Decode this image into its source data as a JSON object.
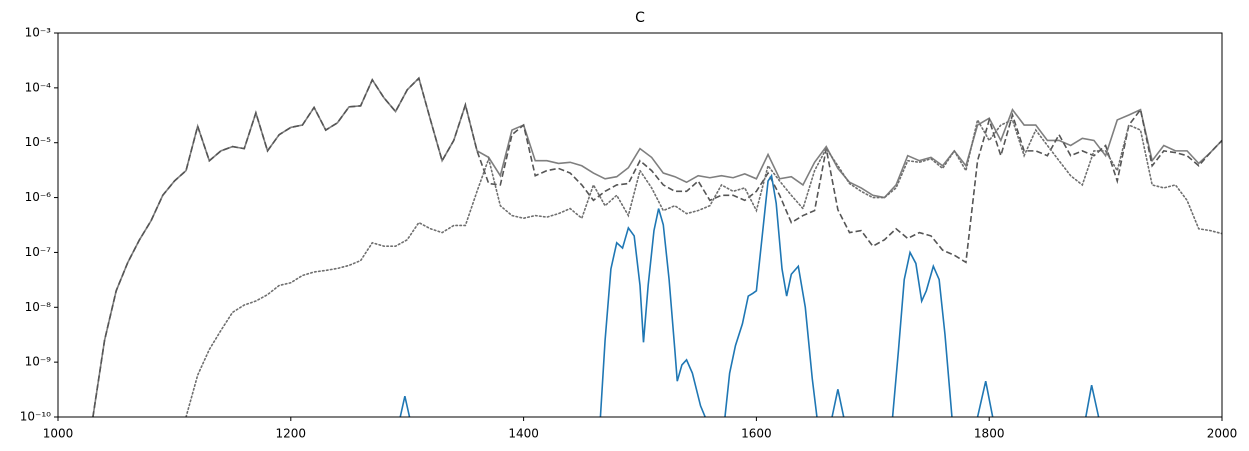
{
  "chart_data": {
    "type": "line",
    "title": "C",
    "yscale": "log",
    "xlim": [
      1000,
      2000
    ],
    "ylim": [
      1e-10,
      0.001
    ],
    "xticks": [
      1000,
      1200,
      1400,
      1600,
      1800,
      2000
    ],
    "yticks": [
      {
        "value": 1e-10,
        "label": "10⁻¹⁰"
      },
      {
        "value": 1e-09,
        "label": "10⁻⁹"
      },
      {
        "value": 1e-08,
        "label": "10⁻⁸"
      },
      {
        "value": 1e-07,
        "label": "10⁻⁷"
      },
      {
        "value": 1e-06,
        "label": "10⁻⁶"
      },
      {
        "value": 1e-05,
        "label": "10⁻⁵"
      },
      {
        "value": 0.0001,
        "label": "10⁻⁴"
      },
      {
        "value": 0.001,
        "label": "10⁻³"
      }
    ],
    "grid": false,
    "x": [
      1000,
      1010,
      1020,
      1030,
      1040,
      1050,
      1060,
      1070,
      1080,
      1090,
      1100,
      1110,
      1120,
      1130,
      1140,
      1150,
      1160,
      1170,
      1180,
      1190,
      1200,
      1210,
      1220,
      1230,
      1240,
      1250,
      1260,
      1270,
      1280,
      1290,
      1300,
      1310,
      1320,
      1330,
      1340,
      1350,
      1360,
      1370,
      1380,
      1390,
      1400,
      1410,
      1420,
      1430,
      1440,
      1450,
      1460,
      1470,
      1480,
      1490,
      1500,
      1510,
      1520,
      1530,
      1540,
      1550,
      1560,
      1570,
      1580,
      1590,
      1600,
      1610,
      1620,
      1630,
      1640,
      1650,
      1660,
      1670,
      1680,
      1690,
      1700,
      1710,
      1720,
      1730,
      1740,
      1750,
      1760,
      1770,
      1780,
      1790,
      1800,
      1810,
      1820,
      1830,
      1840,
      1850,
      1860,
      1870,
      1880,
      1890,
      1900,
      1910,
      1920,
      1930,
      1940,
      1950,
      1960,
      1970,
      1980,
      1990,
      2000
    ],
    "series": [
      {
        "color": "#7f7f7f",
        "dash": "solid",
        "values": [
          null,
          null,
          null,
          1e-10,
          2.5e-09,
          2e-08,
          6.6e-08,
          1.7e-07,
          3.8e-07,
          1.1e-06,
          2e-06,
          3.1e-06,
          2e-05,
          4.7e-06,
          7.1e-06,
          8.5e-06,
          7.8e-06,
          3.5e-05,
          7.1e-06,
          1.4e-05,
          1.9e-05,
          2.1e-05,
          4.4e-05,
          1.7e-05,
          2.3e-05,
          4.5e-05,
          4.7e-05,
          0.00014,
          6.6e-05,
          3.7e-05,
          9.2e-05,
          0.00015,
          2.6e-05,
          4.7e-06,
          1.1e-05,
          4.9e-05,
          7.1e-06,
          5.4e-06,
          2.5e-06,
          1.7e-05,
          2.1e-05,
          4.7e-06,
          4.7e-06,
          4.2e-06,
          4.4e-06,
          3.8e-06,
          2.8e-06,
          2.2e-06,
          2.4e-06,
          3.5e-06,
          7.8e-06,
          5.4e-06,
          2.8e-06,
          2.4e-06,
          1.9e-06,
          2.5e-06,
          2.3e-06,
          2.5e-06,
          2.3e-06,
          2.7e-06,
          2.2e-06,
          6.1e-06,
          2.2e-06,
          2.4e-06,
          1.7e-06,
          4.4e-06,
          8.5e-06,
          3.4e-06,
          1.9e-06,
          1.5e-06,
          1.1e-06,
          1e-06,
          1.7e-06,
          5.8e-06,
          4.7e-06,
          5.4e-06,
          3.8e-06,
          7.1e-06,
          3.8e-06,
          2.1e-05,
          2.8e-05,
          1.1e-05,
          4e-05,
          2.1e-05,
          2.1e-05,
          1.1e-05,
          1.1e-05,
          8.9e-06,
          1.2e-05,
          1.1e-05,
          5.8e-06,
          2.6e-05,
          3.2e-05,
          4e-05,
          4.7e-06,
          8.9e-06,
          7.1e-06,
          7.1e-06,
          4.2e-06,
          6.6e-06,
          1.1e-05
        ]
      },
      {
        "color": "#555555",
        "dash": "dashed",
        "values": [
          null,
          null,
          null,
          1e-10,
          2.5e-09,
          2e-08,
          6.6e-08,
          1.7e-07,
          3.8e-07,
          1.1e-06,
          2e-06,
          3.1e-06,
          2e-05,
          4.7e-06,
          7.1e-06,
          8.5e-06,
          7.8e-06,
          3.5e-05,
          7.1e-06,
          1.4e-05,
          1.9e-05,
          2.1e-05,
          4.4e-05,
          1.7e-05,
          2.3e-05,
          4.5e-05,
          4.7e-05,
          0.00014,
          6.6e-05,
          3.7e-05,
          9.2e-05,
          0.00015,
          2.6e-05,
          4.7e-06,
          1.1e-05,
          4.9e-05,
          7.1e-06,
          1.8e-06,
          1.7e-06,
          1.4e-05,
          2.1e-05,
          2.5e-06,
          3.1e-06,
          3.4e-06,
          2.8e-06,
          1.7e-06,
          8.9e-07,
          1.3e-06,
          1.7e-06,
          1.8e-06,
          4.7e-06,
          3.1e-06,
          1.7e-06,
          1.3e-06,
          1.3e-06,
          2e-06,
          8.9e-07,
          1.1e-06,
          1.1e-06,
          8.9e-07,
          1.3e-06,
          2.8e-06,
          1.1e-06,
          3.5e-07,
          4.7e-07,
          5.8e-07,
          7.8e-06,
          6e-07,
          2.3e-07,
          2.5e-07,
          1.3e-07,
          1.7e-07,
          2.7e-07,
          1.8e-07,
          2.3e-07,
          2e-07,
          1.1e-07,
          8.9e-08,
          6.6e-08,
          4.7e-06,
          2.6e-05,
          5.8e-06,
          3.2e-05,
          7.1e-06,
          7.1e-06,
          5.8e-06,
          1.4e-05,
          5.8e-06,
          7.1e-06,
          5.8e-06,
          8.9e-06,
          2e-06,
          2.1e-05,
          4e-05,
          3.8e-06,
          7.1e-06,
          6.6e-06,
          5.8e-06,
          3.8e-06,
          6.6e-06,
          1.1e-05
        ]
      },
      {
        "color": "#6f6f6f",
        "dash": "dotted",
        "values": [
          null,
          null,
          null,
          null,
          null,
          null,
          null,
          null,
          null,
          null,
          null,
          1e-10,
          5.8e-10,
          1.7e-09,
          3.8e-09,
          8.1e-09,
          1.1e-08,
          1.3e-08,
          1.7e-08,
          2.5e-08,
          2.8e-08,
          3.8e-08,
          4.4e-08,
          4.7e-08,
          5.1e-08,
          5.8e-08,
          7.1e-08,
          1.5e-07,
          1.3e-07,
          1.3e-07,
          1.7e-07,
          3.5e-07,
          2.7e-07,
          2.3e-07,
          3.1e-07,
          3.1e-07,
          1.3e-06,
          5.1e-06,
          7.1e-07,
          4.7e-07,
          4.2e-07,
          4.7e-07,
          4.4e-07,
          5.1e-07,
          6.3e-07,
          4.2e-07,
          1.7e-06,
          7.1e-07,
          1.1e-06,
          4.7e-07,
          3.1e-06,
          1.5e-06,
          5.8e-07,
          7.1e-07,
          5.1e-07,
          5.8e-07,
          7.1e-07,
          1.7e-06,
          1.3e-06,
          1.5e-06,
          5.8e-07,
          3.8e-06,
          2e-06,
          1.1e-06,
          6.3e-07,
          3.1e-06,
          7.8e-06,
          3.8e-06,
          1.8e-06,
          1.3e-06,
          1e-06,
          1e-06,
          1.5e-06,
          4.7e-06,
          4.4e-06,
          5.1e-06,
          3.4e-06,
          7.1e-06,
          3.1e-06,
          2.6e-05,
          1.1e-05,
          2.1e-05,
          2.6e-05,
          5.8e-06,
          1.7e-05,
          8.9e-06,
          4.7e-06,
          2.5e-06,
          1.7e-06,
          7.1e-06,
          7.1e-06,
          3.1e-06,
          2.1e-05,
          1.7e-05,
          1.7e-06,
          1.5e-06,
          1.7e-06,
          8.9e-07,
          2.7e-07,
          2.5e-07,
          2.2e-07
        ]
      },
      {
        "color": "#1f77b4",
        "dash": "solid",
        "x": [
          1294,
          1298,
          1302,
          1400,
          1466,
          1470,
          1475,
          1480,
          1485,
          1490,
          1495,
          1500,
          1503,
          1507,
          1512,
          1516,
          1520,
          1525,
          1530,
          1532,
          1536,
          1540,
          1545,
          1552,
          1556,
          1565,
          1573,
          1577,
          1582,
          1588,
          1593,
          1597,
          1600,
          1605,
          1610,
          1613,
          1617,
          1622,
          1626,
          1630,
          1636,
          1642,
          1648,
          1652,
          1660,
          1665,
          1670,
          1675,
          1700,
          1717,
          1722,
          1727,
          1732,
          1737,
          1742,
          1746,
          1752,
          1757,
          1762,
          1768,
          1780,
          1790,
          1797,
          1803,
          1850,
          1883,
          1888,
          1894
        ],
        "values": [
          1e-10,
          2.4e-10,
          1e-10,
          null,
          1e-10,
          2.5e-09,
          5e-08,
          1.5e-07,
          1.2e-07,
          2.8e-07,
          2e-07,
          2.5e-08,
          2.3e-09,
          2.5e-08,
          2.5e-07,
          6.3e-07,
          3.2e-07,
          3.2e-08,
          1.6e-09,
          4.5e-10,
          8.9e-10,
          1.1e-09,
          6.3e-10,
          1.6e-10,
          1e-10,
          null,
          1e-10,
          6.3e-10,
          2e-09,
          5e-09,
          1.6e-08,
          1.8e-08,
          2e-08,
          2e-07,
          2e-06,
          2.5e-06,
          7.9e-07,
          5e-08,
          1.6e-08,
          4e-08,
          5.6e-08,
          1e-08,
          5e-10,
          1e-10,
          null,
          1e-10,
          3.2e-10,
          1e-10,
          null,
          1e-10,
          1.6e-09,
          3.2e-08,
          1e-07,
          6.3e-08,
          1.3e-08,
          2e-08,
          5.6e-08,
          3.2e-08,
          3.2e-09,
          1e-10,
          null,
          1e-10,
          4.5e-10,
          1e-10,
          null,
          1e-10,
          3.8e-10,
          1e-10
        ]
      }
    ]
  }
}
